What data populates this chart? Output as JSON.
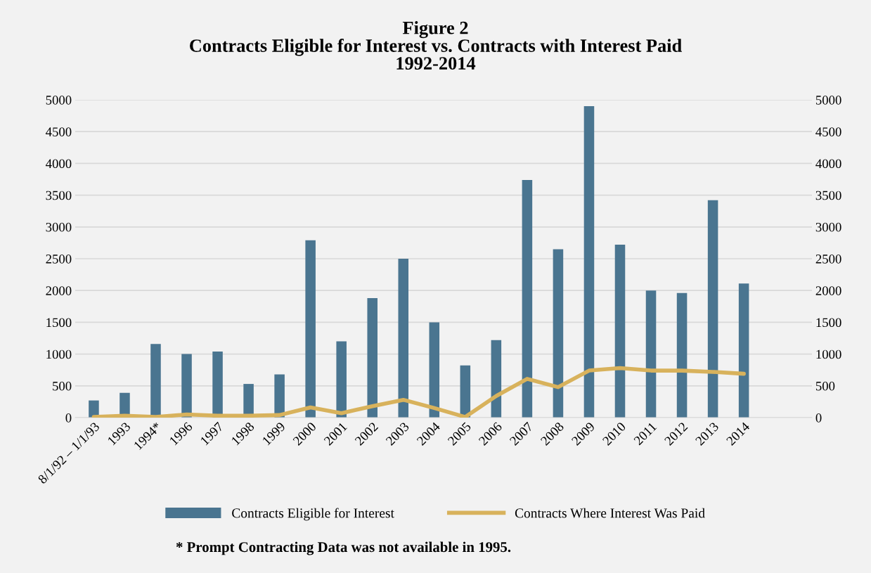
{
  "chart_data": {
    "type": "bar",
    "title": "Figure 2\nContracts Eligible for Interest vs. Contracts with Interest Paid\n1992-2014",
    "categories": [
      "8/1/92 – 1/1/93",
      "1993",
      "1994*",
      "1996",
      "1997",
      "1998",
      "1999",
      "2000",
      "2001",
      "2002",
      "2003",
      "2004",
      "2005",
      "2006",
      "2007",
      "2008",
      "2009",
      "2010",
      "2011",
      "2012",
      "2013",
      "2014"
    ],
    "series": [
      {
        "name": "Contracts Eligible for Interest",
        "color": "#4a7590",
        "values": [
          270,
          390,
          1160,
          1000,
          1040,
          530,
          680,
          2790,
          1200,
          1880,
          2500,
          1500,
          820,
          1220,
          3740,
          2650,
          4900,
          2720,
          2000,
          1960,
          3420,
          2110
        ]
      },
      {
        "name": "Contracts Where Interest Was Paid",
        "type": "line",
        "color": "#d8b25c",
        "values": [
          10,
          30,
          10,
          50,
          30,
          30,
          40,
          160,
          70,
          180,
          280,
          150,
          10,
          340,
          610,
          480,
          740,
          780,
          740,
          740,
          720,
          690
        ]
      }
    ],
    "ylim": [
      0,
      5000
    ],
    "yticks": [
      0,
      500,
      1000,
      1500,
      2000,
      2500,
      3000,
      3500,
      4000,
      4500,
      5000
    ],
    "y2lim": [
      0,
      5000
    ],
    "y2ticks": [
      0,
      500,
      1000,
      1500,
      2000,
      2500,
      3000,
      3500,
      4000,
      4500,
      5000
    ],
    "grid": "y",
    "legend": "bottom",
    "marker": "none",
    "annotations": [
      "* Prompt Contracting Data was not available in 1995."
    ]
  }
}
